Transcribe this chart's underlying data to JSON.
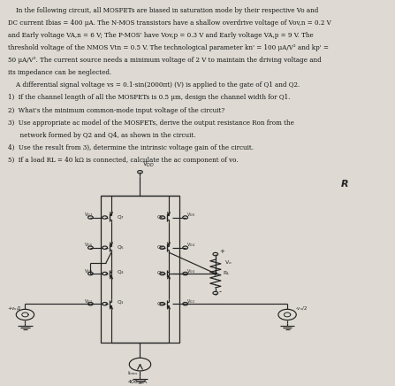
{
  "bg_color": "#dedad3",
  "text_color": "#111111",
  "circuit_bg": "#e8e4dc",
  "text_area_bg": "#dedad3",
  "line_color": "#222222",
  "text_lines": [
    "    In the following circuit, all MOSFETs are biased in saturation mode by their respective Vo and",
    "DC current Ibias = 400 μA. The N-MOS transistors have a shallow overdrive voltage of Vov,n = 0.2 V",
    "and Early voltage VA,n = 6 V; The P-MOS' have Vov,p = 0.3 V and Early voltage VA,p = 9 V. The",
    "threshold voltage of the NMOS Vtn = 0.5 V. The technological parameter kn' = 100 μA/V² and kp' =",
    "50 μA/V². The current source needs a minimum voltage of 2 V to maintain the driving voltage and",
    "its impedance can be neglected."
  ],
  "prob_lines": [
    "    A differential signal voltage vs = 0.1·sin(2000πt) (V) is applied to the gate of Q1 and Q2.",
    "1)  If the channel length of all the MOSFETs is 0.5 μm, design the channel width for Q1.",
    "2)  What's the minimum common-mode input voltage of the circuit?",
    "3)  Use appropriate ac model of the MOSFETs, derive the output resistance Ron from the",
    "      network formed by Q2 and Q4, as shown in the circuit.",
    "4)  Use the result from 3), determine the intrinsic voltage gain of the circuit.",
    "5)  If a load RL = 40 kΩ is connected, calculate the ac component of vo."
  ]
}
